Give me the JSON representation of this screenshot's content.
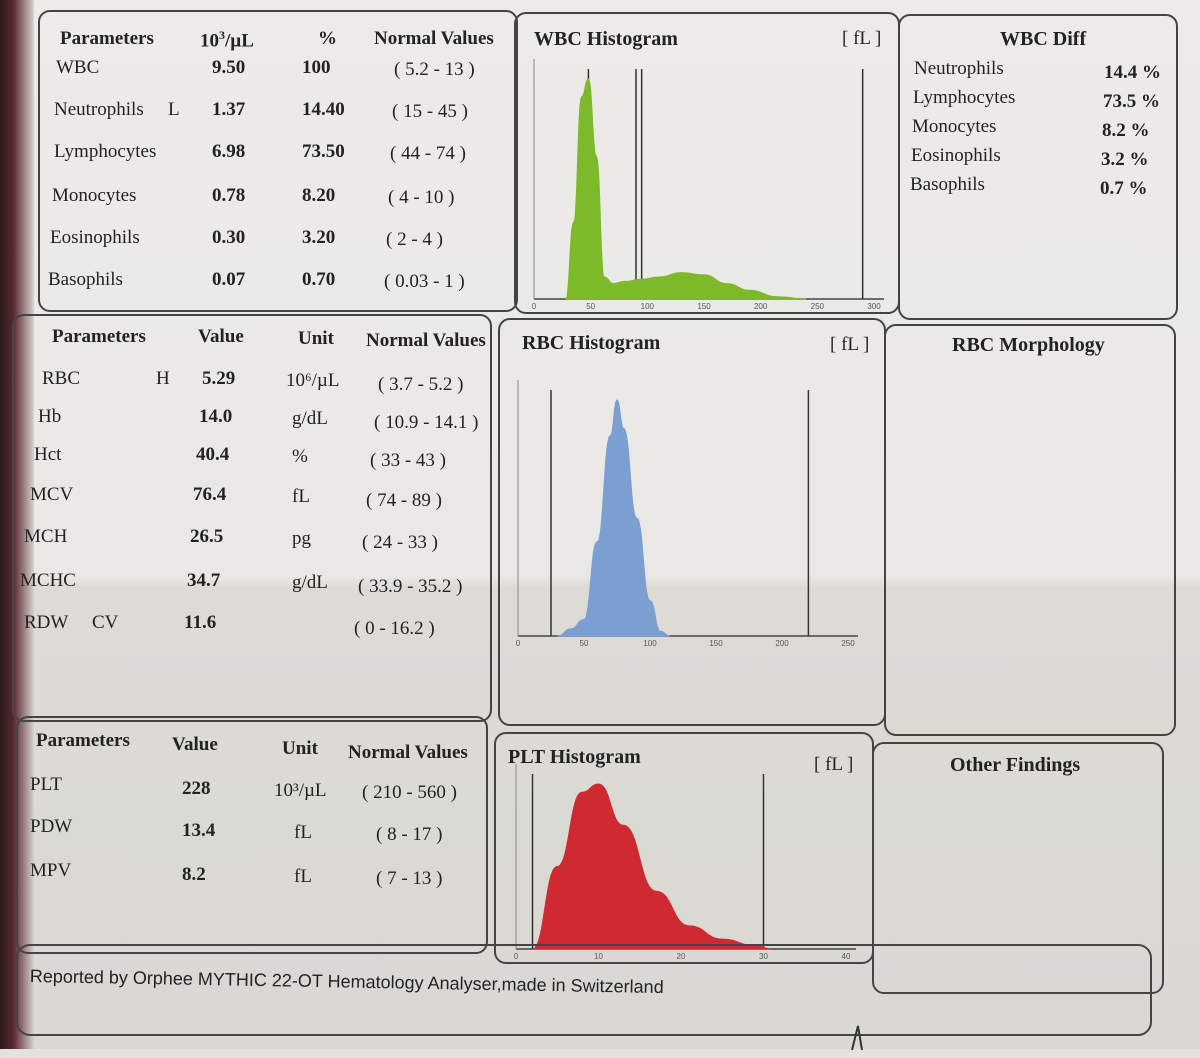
{
  "wbc_table": {
    "headers": [
      "Parameters",
      "10³/µL",
      "%",
      "Normal Values"
    ],
    "unit_base": "10",
    "unit_exp": "3",
    "unit_rest": "/µL",
    "rows": [
      {
        "name": "WBC",
        "flag": "",
        "abs": "9.50",
        "pct": "100",
        "normal": "( 5.2 - 13 )"
      },
      {
        "name": "Neutrophils",
        "flag": "L",
        "abs": "1.37",
        "pct": "14.40",
        "normal": "( 15 - 45 )"
      },
      {
        "name": "Lymphocytes",
        "flag": "",
        "abs": "6.98",
        "pct": "73.50",
        "normal": "( 44 - 74 )"
      },
      {
        "name": "Monocytes",
        "flag": "",
        "abs": "0.78",
        "pct": "8.20",
        "normal": "( 4 - 10 )"
      },
      {
        "name": "Eosinophils",
        "flag": "",
        "abs": "0.30",
        "pct": "3.20",
        "normal": "( 2 - 4 )"
      },
      {
        "name": "Basophils",
        "flag": "",
        "abs": "0.07",
        "pct": "0.70",
        "normal": "( 0.03 - 1 )"
      }
    ]
  },
  "rbc_table": {
    "headers": [
      "Parameters",
      "Value",
      "Unit",
      "Normal Values"
    ],
    "rows": [
      {
        "name": "RBC",
        "flag": "H",
        "value": "5.29",
        "unit": "10⁶/µL",
        "normal": "( 3.7 - 5.2 )"
      },
      {
        "name": "Hb",
        "flag": "",
        "value": "14.0",
        "unit": "g/dL",
        "normal": "( 10.9 - 14.1 )"
      },
      {
        "name": "Hct",
        "flag": "",
        "value": "40.4",
        "unit": "%",
        "normal": "( 33 - 43 )"
      },
      {
        "name": "MCV",
        "flag": "",
        "value": "76.4",
        "unit": "fL",
        "normal": "( 74 - 89 )"
      },
      {
        "name": "MCH",
        "flag": "",
        "value": "26.5",
        "unit": "pg",
        "normal": "( 24 - 33 )"
      },
      {
        "name": "MCHC",
        "flag": "",
        "value": "34.7",
        "unit": "g/dL",
        "normal": "( 33.9 - 35.2 )"
      },
      {
        "name": "RDW",
        "flag": "CV",
        "value": "11.6",
        "unit": "",
        "normal": "( 0 - 16.2 )"
      }
    ]
  },
  "plt_table": {
    "headers": [
      "Parameters",
      "Value",
      "Unit",
      "Normal Values"
    ],
    "rows": [
      {
        "name": "PLT",
        "value": "228",
        "unit": "10³/µL",
        "normal": "( 210 - 560 )"
      },
      {
        "name": "PDW",
        "value": "13.4",
        "unit": "fL",
        "normal": "( 8 - 17 )"
      },
      {
        "name": "MPV",
        "value": "8.2",
        "unit": "fL",
        "normal": "( 7 - 13 )"
      }
    ]
  },
  "wbc_diff": {
    "title": "WBC Diff",
    "rows": [
      {
        "name": "Neutrophils",
        "value": "14.4 %"
      },
      {
        "name": "Lymphocytes",
        "value": "73.5 %"
      },
      {
        "name": "Monocytes",
        "value": "8.2 %"
      },
      {
        "name": "Eosinophils",
        "value": "3.2 %"
      },
      {
        "name": "Basophils",
        "value": "0.7 %"
      }
    ]
  },
  "rbc_morphology": {
    "title": "RBC Morphology"
  },
  "other_findings": {
    "title": "Other Findings"
  },
  "footer": "Reported by Orphee MYTHIC 22-OT Hematology Analyser,made in Switzerland",
  "colors": {
    "wbc": "#7dba2a",
    "rbc": "#7b9fd1",
    "plt": "#cf2a32"
  },
  "chart_data": [
    {
      "type": "area",
      "title": "WBC Histogram",
      "unit_label": "[ fL ]",
      "x_ticks": [
        "0",
        "50",
        "100",
        "150",
        "200",
        "250",
        "300"
      ],
      "xlim": [
        0,
        300
      ],
      "x": [
        28,
        35,
        42,
        48,
        55,
        62,
        70,
        80,
        95,
        110,
        130,
        150,
        170,
        190,
        215,
        240
      ],
      "values": [
        0,
        0.35,
        0.92,
        1.0,
        0.65,
        0.1,
        0.07,
        0.08,
        0.09,
        0.1,
        0.12,
        0.11,
        0.07,
        0.04,
        0.01,
        0
      ],
      "markers": [
        48,
        90,
        95,
        290
      ]
    },
    {
      "type": "area",
      "title": "RBC Histogram",
      "unit_label": "[ fL ]",
      "x_ticks": [
        "0",
        "50",
        "100",
        "150",
        "200",
        "250"
      ],
      "xlim": [
        0,
        250
      ],
      "x": [
        30,
        40,
        50,
        60,
        70,
        75,
        80,
        90,
        100,
        108,
        115
      ],
      "values": [
        0,
        0.03,
        0.07,
        0.4,
        0.85,
        1.0,
        0.88,
        0.5,
        0.15,
        0.02,
        0
      ],
      "markers": [
        25,
        220
      ]
    },
    {
      "type": "area",
      "title": "PLT Histogram",
      "unit_label": "[ fL ]",
      "x_ticks": [
        "0",
        "10",
        "20",
        "30",
        "40"
      ],
      "xlim": [
        0,
        40
      ],
      "x": [
        2,
        5,
        8,
        10,
        13,
        17,
        21,
        25,
        29,
        31
      ],
      "values": [
        0,
        0.5,
        0.95,
        1.0,
        0.75,
        0.35,
        0.14,
        0.06,
        0.02,
        0
      ],
      "markers": [
        2,
        30
      ]
    }
  ]
}
